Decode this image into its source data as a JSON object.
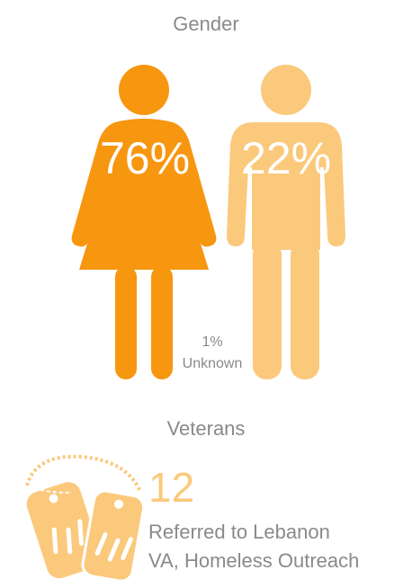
{
  "gender": {
    "title": "Gender",
    "female": "76%",
    "male": "22%",
    "unknown_value": "1%",
    "unknown_label": "Unknown"
  },
  "veterans": {
    "title": "Veterans",
    "count": "12",
    "description": [
      "Referred to Lebanon",
      "VA, Homeless Outreach"
    ]
  }
}
